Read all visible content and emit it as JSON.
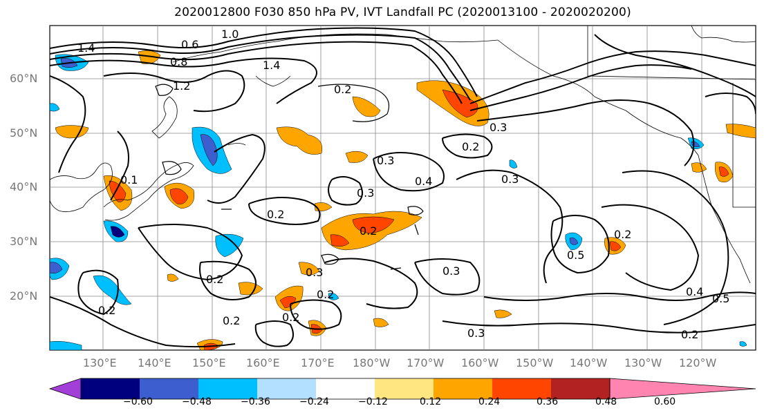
{
  "title": "2020012800 F030 850 hPa PV, IVT Landfall PC (2020013100 - 2020020200)",
  "lat_labels": [
    "60°N",
    "50°N",
    "40°N",
    "30°N",
    "20°N"
  ],
  "lon_labels": [
    "130°E",
    "140°E",
    "150°E",
    "160°E",
    "170°E",
    "180°W",
    "170°W",
    "160°W",
    "150°W",
    "140°W",
    "130°W",
    "120°W"
  ],
  "contour_labels": [
    "1.4",
    "0.6",
    "0.8",
    "1.0",
    "1.2",
    "1.4",
    "0.2",
    "0.3",
    "0.2",
    "0.3",
    "0.4",
    "0.3",
    "0.2",
    "0.2",
    "0.3",
    "0.2",
    "0.2",
    "0.3",
    "0.2",
    "0.2",
    "0.2",
    "0.3",
    "0.2",
    "0.3",
    "0.4",
    "0.5",
    "0.2",
    "0.1",
    "0.5"
  ],
  "colorbar": {
    "ticks": [
      "−0.60",
      "−0.48",
      "−0.36",
      "−0.24",
      "−0.12",
      "0.12",
      "0.24",
      "0.36",
      "0.48",
      "0.60"
    ],
    "colors": [
      "#a23fd8",
      "#00007f",
      "#3d5ecf",
      "#00bfff",
      "#b3e0ff",
      "#ffffff",
      "#ffe680",
      "#ffa500",
      "#ff4500",
      "#b22222",
      "#ff85b0"
    ]
  }
}
